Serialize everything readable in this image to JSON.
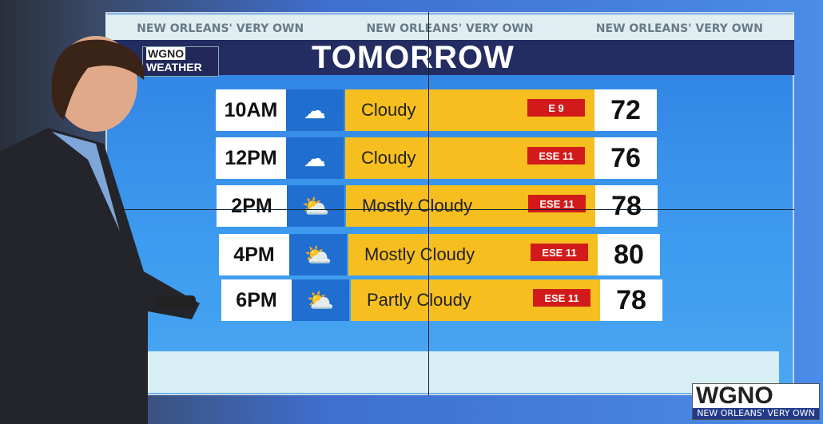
{
  "header": {
    "banner": [
      "NEW ORLEANS' VERY OWN",
      "NEW ORLEANS' VERY OWN",
      "NEW ORLEANS' VERY OWN"
    ],
    "title": "TOMORROW",
    "logo_line1": "WGNO",
    "logo_line2": "WEATHER"
  },
  "forecast": [
    {
      "time": "10AM",
      "icon": "cloudy-icon",
      "condition": "Cloudy",
      "wind": "E 9",
      "temp": "72"
    },
    {
      "time": "12PM",
      "icon": "cloudy-icon",
      "condition": "Cloudy",
      "wind": "ESE 11",
      "temp": "76"
    },
    {
      "time": "2PM",
      "icon": "partly-sunny-icon",
      "condition": "Mostly Cloudy",
      "wind": "ESE 11",
      "temp": "78"
    },
    {
      "time": "4PM",
      "icon": "partly-sunny-icon",
      "condition": "Mostly Cloudy",
      "wind": "ESE 11",
      "temp": "80"
    },
    {
      "time": "6PM",
      "icon": "partly-sunny-icon",
      "condition": "Partly Cloudy",
      "wind": "ESE 11",
      "temp": "78"
    }
  ],
  "bug": {
    "station": "WGNO",
    "tagline": "NEW ORLEANS' VERY OWN"
  },
  "colors": {
    "condition_bg": "#f6bf1f",
    "wind_bg": "#d31a1a",
    "title_bar": "#232d62"
  }
}
